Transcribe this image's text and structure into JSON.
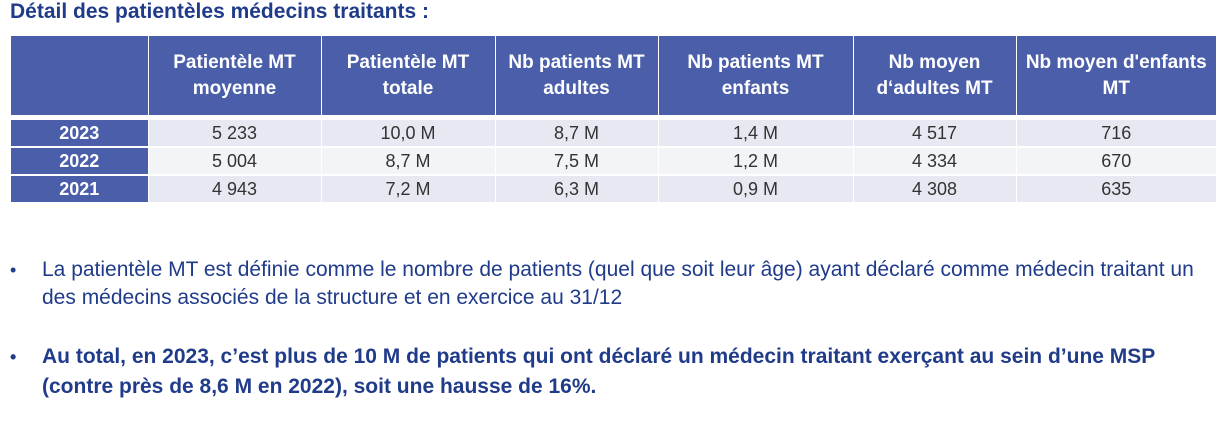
{
  "title": "Détail des patientèles médecins traitants :",
  "table": {
    "headers": [
      "",
      "Patientèle MT moyenne",
      "Patientèle MT totale",
      "Nb patients MT adultes",
      "Nb patients MT enfants",
      "Nb moyen d‘adultes MT",
      "Nb moyen d'enfants MT"
    ],
    "rows": [
      {
        "year": "2023",
        "cells": [
          "5 233",
          "10,0 M",
          "8,7 M",
          "1,4 M",
          "4 517",
          "716"
        ]
      },
      {
        "year": "2022",
        "cells": [
          "5 004",
          "8,7 M",
          "7,5 M",
          "1,2 M",
          "4 334",
          "670"
        ]
      },
      {
        "year": "2021",
        "cells": [
          "4 943",
          "7,2 M",
          "6,3 M",
          "0,9 M",
          "4 308",
          "635"
        ]
      }
    ]
  },
  "bullets": [
    {
      "marker": "•",
      "text": "La patientèle MT est définie comme le nombre de patients (quel que soit leur âge) ayant déclaré comme médecin traitant un des médecins associés de la structure et en exercice au 31/12"
    },
    {
      "marker": "•",
      "text": "Au total, en 2023, c’est plus de 10 M de patients qui ont déclaré un médecin traitant exerçant au sein d’une MSP (contre près de 8,6 M en 2022), soit une hausse de 16%."
    }
  ],
  "colors": {
    "header_bg": "#4a5eaa",
    "row_bg": "#e6e9f2",
    "text_blue": "#1f3b8a"
  }
}
